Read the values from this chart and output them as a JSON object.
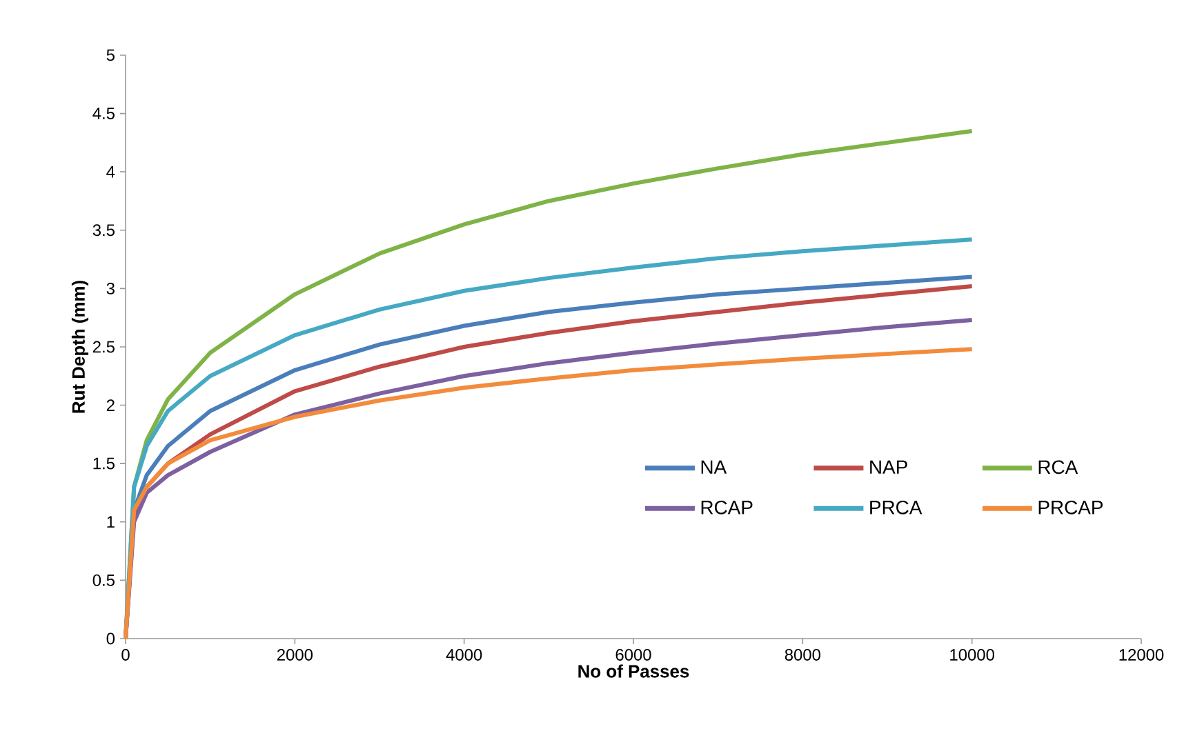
{
  "chart_data": {
    "type": "line",
    "xlabel": "No of Passes",
    "ylabel": "Rut Depth (mm)",
    "x": [
      0,
      100,
      250,
      500,
      1000,
      2000,
      3000,
      4000,
      5000,
      6000,
      7000,
      8000,
      9000,
      10000
    ],
    "series": [
      {
        "name": "NA",
        "color": "#4a7ebb",
        "values": [
          0,
          1.1,
          1.4,
          1.65,
          1.95,
          2.3,
          2.52,
          2.68,
          2.8,
          2.88,
          2.95,
          3.0,
          3.05,
          3.1
        ]
      },
      {
        "name": "NAP",
        "color": "#be4b48",
        "values": [
          0,
          1.05,
          1.3,
          1.5,
          1.75,
          2.12,
          2.33,
          2.5,
          2.62,
          2.72,
          2.8,
          2.88,
          2.95,
          3.02
        ]
      },
      {
        "name": "RCA",
        "color": "#7fb347",
        "values": [
          0,
          1.3,
          1.7,
          2.05,
          2.45,
          2.95,
          3.3,
          3.55,
          3.75,
          3.9,
          4.03,
          4.15,
          4.25,
          4.35
        ]
      },
      {
        "name": "RCAP",
        "color": "#7d60a0",
        "values": [
          0,
          1.0,
          1.25,
          1.4,
          1.6,
          1.92,
          2.1,
          2.25,
          2.36,
          2.45,
          2.53,
          2.6,
          2.67,
          2.73
        ]
      },
      {
        "name": "PRCA",
        "color": "#46a9c4",
        "values": [
          0,
          1.3,
          1.65,
          1.95,
          2.25,
          2.6,
          2.82,
          2.98,
          3.09,
          3.18,
          3.26,
          3.32,
          3.37,
          3.42
        ]
      },
      {
        "name": "PRCAP",
        "color": "#f28c3c",
        "values": [
          0,
          1.1,
          1.3,
          1.5,
          1.7,
          1.9,
          2.04,
          2.15,
          2.23,
          2.3,
          2.35,
          2.4,
          2.44,
          2.48
        ]
      }
    ],
    "xlim": [
      0,
      12000
    ],
    "ylim": [
      0,
      5
    ],
    "xticks": [
      0,
      2000,
      4000,
      6000,
      8000,
      10000,
      12000
    ],
    "yticks": [
      0,
      0.5,
      1,
      1.5,
      2,
      2.5,
      3,
      3.5,
      4,
      4.5,
      5
    ],
    "legend": "bottom right",
    "marker": "none",
    "line_style": "solid",
    "grid": false
  }
}
